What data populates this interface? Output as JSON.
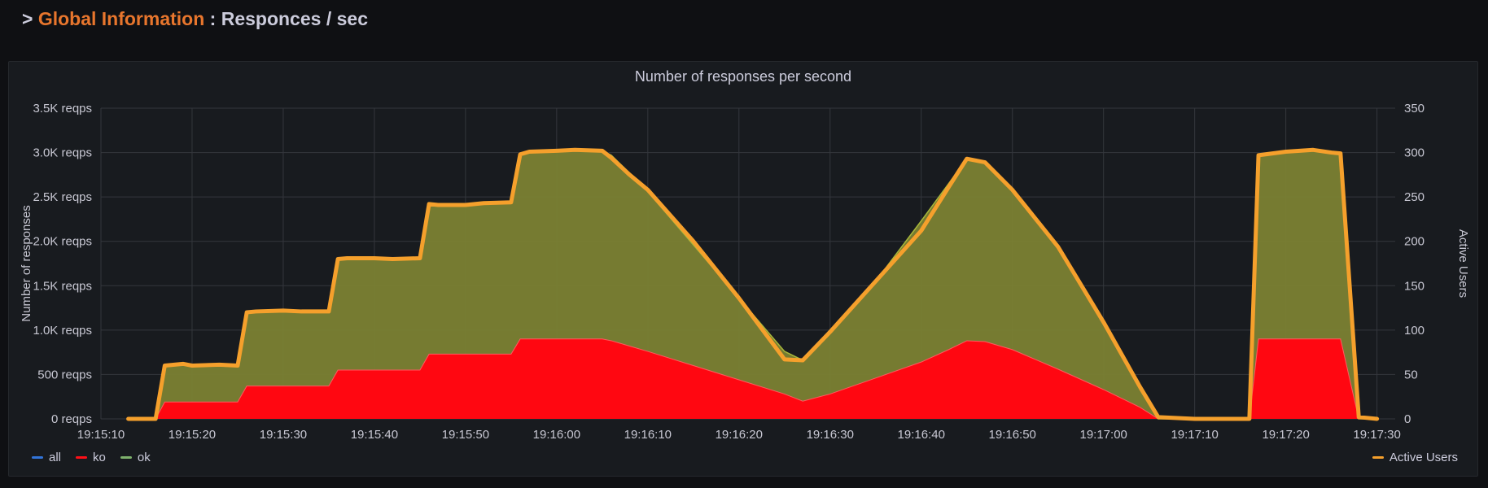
{
  "row": {
    "arrow": ">",
    "title_accent": "Global Information",
    "title_rest": " : Responces / sec"
  },
  "panel": {
    "title": "Number of responses per second"
  },
  "legend": {
    "items": [
      {
        "label": "all",
        "color": "#3274d9"
      },
      {
        "label": "ko",
        "color": "#ff0f17"
      },
      {
        "label": "ok",
        "color": "#7eb26d"
      }
    ],
    "right": {
      "label": "Active Users",
      "color": "#f5a02c"
    }
  },
  "colors": {
    "ok_fill": "#7b8133",
    "ko_fill": "#ff0711",
    "users_line": "#f5a02c",
    "ok_line": "#a8b83a",
    "grid": "#34373d"
  },
  "chart_data": {
    "type": "area",
    "title": "Number of responses per second",
    "ylabel": "Number of responses",
    "y2label": "Active Users",
    "ylim": [
      0,
      3500
    ],
    "y2lim": [
      0,
      350
    ],
    "yticks": [
      "0 reqps",
      "500 reqps",
      "1.0K reqps",
      "1.5K reqps",
      "2.0K reqps",
      "2.5K reqps",
      "3.0K reqps",
      "3.5K reqps"
    ],
    "y2ticks": [
      "0",
      "50",
      "100",
      "150",
      "200",
      "250",
      "300",
      "350"
    ],
    "xticks": [
      "19:15:10",
      "19:15:20",
      "19:15:30",
      "19:15:40",
      "19:15:50",
      "19:16:00",
      "19:16:10",
      "19:16:20",
      "19:16:30",
      "19:16:40",
      "19:16:50",
      "19:17:00",
      "19:17:10",
      "19:17:20",
      "19:17:30"
    ],
    "x": [
      "19:15:13",
      "19:15:16",
      "19:15:17",
      "19:15:19",
      "19:15:20",
      "19:15:23",
      "19:15:25",
      "19:15:26",
      "19:15:27",
      "19:15:30",
      "19:15:32",
      "19:15:35",
      "19:15:36",
      "19:15:37",
      "19:15:40",
      "19:15:42",
      "19:15:45",
      "19:15:46",
      "19:15:47",
      "19:15:50",
      "19:15:52",
      "19:15:55",
      "19:15:56",
      "19:15:57",
      "19:16:00",
      "19:16:02",
      "19:16:05",
      "19:16:06",
      "19:16:08",
      "19:16:10",
      "19:16:15",
      "19:16:20",
      "19:16:25",
      "19:16:27",
      "19:16:30",
      "19:16:35",
      "19:16:40",
      "19:16:43",
      "19:16:45",
      "19:16:47",
      "19:16:50",
      "19:16:55",
      "19:17:00",
      "19:17:04",
      "19:17:06",
      "19:17:10",
      "19:17:14",
      "19:17:16",
      "19:17:17",
      "19:17:20",
      "19:17:23",
      "19:17:25",
      "19:17:26",
      "19:17:28",
      "19:17:30"
    ],
    "series": [
      {
        "name": "ok",
        "values": [
          0,
          0,
          400,
          420,
          410,
          420,
          410,
          820,
          830,
          840,
          830,
          840,
          1260,
          1270,
          1270,
          1260,
          1260,
          1700,
          1690,
          1690,
          1710,
          1720,
          2080,
          2110,
          2110,
          2120,
          2120,
          2090,
          1950,
          1800,
          1360,
          920,
          480,
          460,
          680,
          1090,
          1590,
          1870,
          2050,
          2020,
          1800,
          1380,
          760,
          230,
          0,
          0,
          0,
          0,
          2070,
          2110,
          2120,
          2100,
          2100,
          0,
          0
        ]
      },
      {
        "name": "ko",
        "values": [
          0,
          0,
          190,
          190,
          190,
          190,
          190,
          370,
          370,
          370,
          370,
          370,
          550,
          550,
          550,
          550,
          550,
          730,
          730,
          730,
          730,
          730,
          900,
          900,
          900,
          900,
          900,
          880,
          820,
          760,
          600,
          440,
          280,
          200,
          280,
          460,
          640,
          780,
          880,
          870,
          780,
          560,
          330,
          130,
          0,
          0,
          0,
          0,
          900,
          900,
          900,
          900,
          900,
          0,
          0
        ]
      },
      {
        "name": "Active Users",
        "axis": "right",
        "values": [
          0,
          0,
          60,
          62,
          60,
          61,
          60,
          120,
          121,
          122,
          121,
          121,
          180,
          181,
          181,
          180,
          181,
          242,
          241,
          241,
          243,
          244,
          298,
          301,
          302,
          303,
          302,
          294,
          275,
          258,
          200,
          136,
          67,
          66,
          98,
          155,
          212,
          261,
          293,
          289,
          258,
          194,
          109,
          36,
          2,
          0,
          0,
          0,
          297,
          301,
          303,
          300,
          299,
          2,
          0
        ]
      }
    ]
  }
}
